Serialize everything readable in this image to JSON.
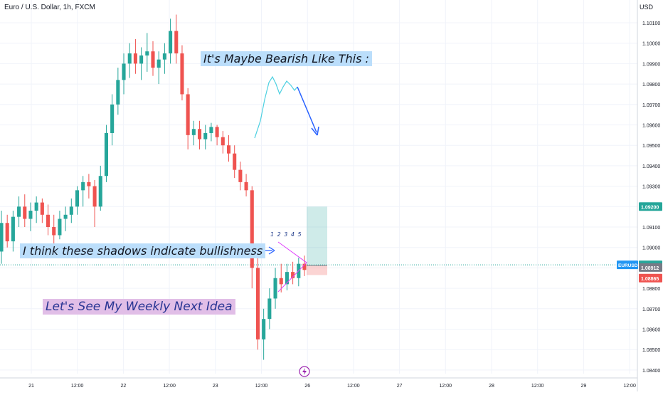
{
  "header": {
    "title": "Euro / U.S. Dollar, 1h, FXCM",
    "currency": "USD"
  },
  "annotations": {
    "bearish": "It's Maybe Bearish Like This :",
    "shadows": "I think these shadows indicate bullishness",
    "weekly": "Let's See My Weekly Next Idea",
    "wave_numbers": "1 2 3 4 5"
  },
  "price_labels": {
    "symbol": "EURUSD",
    "take_profit": "1.09200",
    "last": "1.08915",
    "entry": "1.08912",
    "stop": "1.08865"
  },
  "colors": {
    "up": "#26a69a",
    "down": "#ef5350",
    "grid": "#f0f3fa",
    "text": "#131722",
    "accent_blue": "#2962ff",
    "triangle": "#e040fb"
  },
  "event_icon": "lightning-icon",
  "chart_data": {
    "type": "candlestick",
    "title": "Euro / U.S. Dollar, 1h, FXCM",
    "ylabel": "USD",
    "ylim": [
      1.0835,
      1.1017
    ],
    "y_ticks": [
      "1.10100",
      "1.10000",
      "1.09900",
      "1.09800",
      "1.09700",
      "1.09600",
      "1.09500",
      "1.09400",
      "1.09300",
      "1.09200",
      "1.09100",
      "1.09000",
      "1.08900",
      "1.08800",
      "1.08700",
      "1.08600",
      "1.08500",
      "1.08400"
    ],
    "x_ticks": [
      "21",
      "12:00",
      "22",
      "12:00",
      "23",
      "12:00",
      "26",
      "12:00",
      "27",
      "12:00",
      "28",
      "12:00",
      "29",
      "12:00"
    ],
    "grid": true,
    "candles": [
      [
        1.0898,
        1.0918,
        1.0892,
        1.0912
      ],
      [
        1.0912,
        1.0916,
        1.09,
        1.0903
      ],
      [
        1.0903,
        1.0918,
        1.0898,
        1.0915
      ],
      [
        1.0915,
        1.0925,
        1.091,
        1.092
      ],
      [
        1.092,
        1.0926,
        1.091,
        1.0914
      ],
      [
        1.0914,
        1.0922,
        1.0908,
        1.0918
      ],
      [
        1.0918,
        1.0925,
        1.0912,
        1.0922
      ],
      [
        1.0922,
        1.0924,
        1.0912,
        1.0916
      ],
      [
        1.0916,
        1.0921,
        1.0906,
        1.091
      ],
      [
        1.091,
        1.0916,
        1.0902,
        1.0906
      ],
      [
        1.0906,
        1.0918,
        1.0904,
        1.0914
      ],
      [
        1.0914,
        1.092,
        1.0908,
        1.0916
      ],
      [
        1.0916,
        1.0924,
        1.0912,
        1.092
      ],
      [
        1.092,
        1.093,
        1.0916,
        1.0928
      ],
      [
        1.0928,
        1.0935,
        1.092,
        1.0932
      ],
      [
        1.0932,
        1.0936,
        1.0924,
        1.093
      ],
      [
        1.093,
        1.0933,
        1.091,
        1.092
      ],
      [
        1.092,
        1.094,
        1.0918,
        1.0935
      ],
      [
        1.0935,
        1.096,
        1.0932,
        1.0956
      ],
      [
        1.0956,
        1.0975,
        1.095,
        1.097
      ],
      [
        1.097,
        1.0988,
        1.0965,
        1.0982
      ],
      [
        1.0982,
        1.0995,
        1.0975,
        1.099
      ],
      [
        1.099,
        1.1,
        1.0983,
        1.0995
      ],
      [
        1.0995,
        1.1002,
        1.0985,
        1.099
      ],
      [
        1.099,
        1.0998,
        1.0982,
        1.0994
      ],
      [
        1.0994,
        1.1005,
        1.0986,
        1.0996
      ],
      [
        1.0996,
        1.1001,
        1.0984,
        1.0988
      ],
      [
        1.0988,
        1.0996,
        1.098,
        1.0992
      ],
      [
        1.0992,
        1.1,
        1.0985,
        1.0995
      ],
      [
        1.0995,
        1.1012,
        1.099,
        1.1006
      ],
      [
        1.1006,
        1.1014,
        1.099,
        1.0995
      ],
      [
        1.0995,
        1.0999,
        1.0972,
        1.0975
      ],
      [
        1.0975,
        1.0978,
        1.0948,
        1.0955
      ],
      [
        1.0955,
        1.0962,
        1.095,
        1.0958
      ],
      [
        1.0958,
        1.0962,
        1.0948,
        1.0953
      ],
      [
        1.0953,
        1.096,
        1.0948,
        1.0956
      ],
      [
        1.0956,
        1.0961,
        1.0952,
        1.0959
      ],
      [
        1.0959,
        1.096,
        1.095,
        1.0954
      ],
      [
        1.0954,
        1.0957,
        1.0946,
        1.095
      ],
      [
        1.095,
        1.0955,
        1.0942,
        1.0946
      ],
      [
        1.0946,
        1.095,
        1.0934,
        1.0938
      ],
      [
        1.0938,
        1.0942,
        1.0928,
        1.0932
      ],
      [
        1.0932,
        1.0936,
        1.0925,
        1.0928
      ],
      [
        1.0928,
        1.093,
        1.088,
        1.089
      ],
      [
        1.089,
        1.0895,
        1.085,
        1.0855
      ],
      [
        1.0855,
        1.087,
        1.0845,
        1.0865
      ],
      [
        1.0865,
        1.088,
        1.086,
        1.0875
      ],
      [
        1.0875,
        1.089,
        1.087,
        1.0885
      ],
      [
        1.0885,
        1.0892,
        1.0878,
        1.0882
      ],
      [
        1.0882,
        1.0892,
        1.0879,
        1.0888
      ],
      [
        1.0888,
        1.0893,
        1.0882,
        1.0885
      ],
      [
        1.0885,
        1.0895,
        1.0881,
        1.0892
      ],
      [
        1.0892,
        1.0896,
        1.0886,
        1.0889
      ]
    ],
    "position": {
      "take_profit": 1.092,
      "entry": 1.08912,
      "stop": 1.08865
    }
  }
}
